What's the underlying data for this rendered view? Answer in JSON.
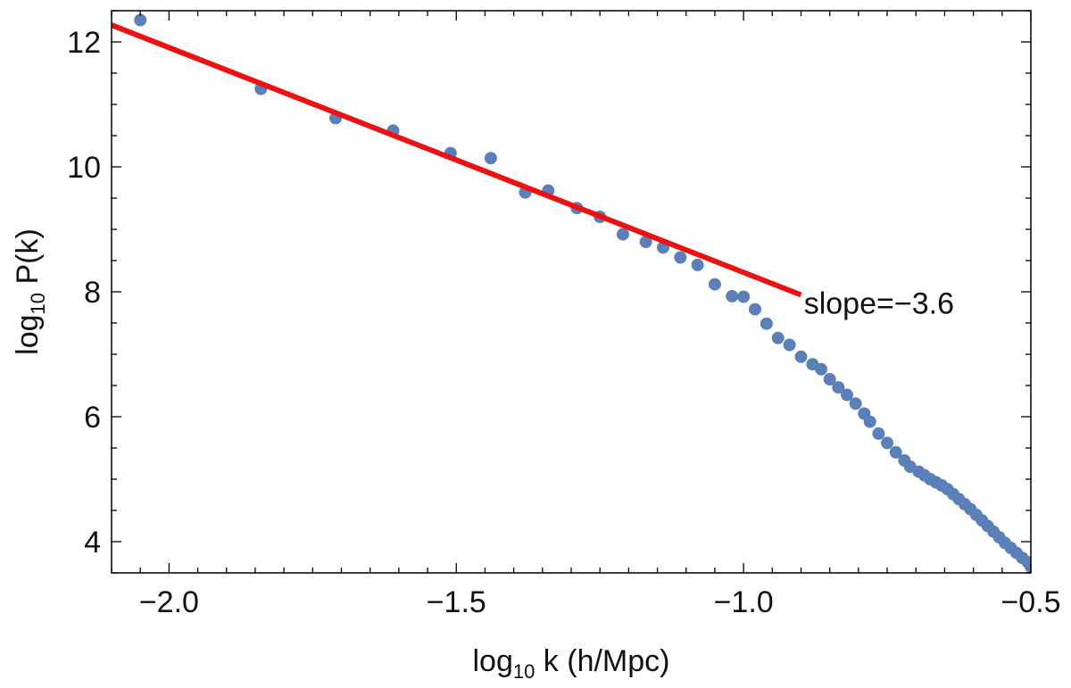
{
  "chart_data": {
    "type": "scatter",
    "xlabel": {
      "base": "log",
      "sub": "10",
      "rest": " k (h/Mpc)"
    },
    "ylabel": {
      "base": "log",
      "sub": "10",
      "rest": " P(k)"
    },
    "xlim": [
      -2.1,
      -0.5
    ],
    "ylim": [
      3.5,
      12.5
    ],
    "xticks": [
      -2.0,
      -1.5,
      -1.0,
      -0.5
    ],
    "xtick_labels": [
      "−2.0",
      "−1.5",
      "−1.0",
      "−0.5"
    ],
    "yticks": [
      4,
      6,
      8,
      10,
      12
    ],
    "ytick_labels": [
      "4",
      "6",
      "8",
      "10",
      "12"
    ],
    "grid": false,
    "colors": {
      "points": "#5b7fb8",
      "fit": "#ee1111",
      "axes": "#000000"
    },
    "series": [
      {
        "kind": "points",
        "points": [
          [
            -2.05,
            12.35
          ],
          [
            -1.84,
            11.25
          ],
          [
            -1.71,
            10.78
          ],
          [
            -1.61,
            10.58
          ],
          [
            -1.51,
            10.22
          ],
          [
            -1.44,
            10.14
          ],
          [
            -1.38,
            9.59
          ],
          [
            -1.34,
            9.62
          ],
          [
            -1.29,
            9.34
          ],
          [
            -1.25,
            9.2
          ],
          [
            -1.21,
            8.92
          ],
          [
            -1.17,
            8.8
          ],
          [
            -1.14,
            8.71
          ],
          [
            -1.11,
            8.55
          ],
          [
            -1.08,
            8.43
          ],
          [
            -1.05,
            8.12
          ],
          [
            -1.02,
            7.93
          ],
          [
            -1.0,
            7.92
          ],
          [
            -0.98,
            7.72
          ],
          [
            -0.96,
            7.49
          ],
          [
            -0.94,
            7.26
          ],
          [
            -0.92,
            7.15
          ],
          [
            -0.9,
            6.96
          ],
          [
            -0.88,
            6.84
          ],
          [
            -0.865,
            6.76
          ],
          [
            -0.85,
            6.6
          ],
          [
            -0.835,
            6.47
          ],
          [
            -0.82,
            6.35
          ],
          [
            -0.805,
            6.21
          ],
          [
            -0.79,
            6.05
          ],
          [
            -0.78,
            5.92
          ],
          [
            -0.765,
            5.73
          ],
          [
            -0.75,
            5.58
          ],
          [
            -0.735,
            5.43
          ],
          [
            -0.72,
            5.3
          ],
          [
            -0.71,
            5.2
          ],
          [
            -0.695,
            5.12
          ],
          [
            -0.685,
            5.06
          ],
          [
            -0.675,
            5.0
          ],
          [
            -0.665,
            4.95
          ],
          [
            -0.655,
            4.9
          ],
          [
            -0.645,
            4.84
          ],
          [
            -0.635,
            4.76
          ],
          [
            -0.625,
            4.68
          ],
          [
            -0.615,
            4.6
          ],
          [
            -0.605,
            4.52
          ],
          [
            -0.595,
            4.43
          ],
          [
            -0.585,
            4.34
          ],
          [
            -0.575,
            4.25
          ],
          [
            -0.565,
            4.16
          ],
          [
            -0.555,
            4.07
          ],
          [
            -0.545,
            3.98
          ],
          [
            -0.535,
            3.9
          ],
          [
            -0.525,
            3.82
          ],
          [
            -0.515,
            3.74
          ],
          [
            -0.505,
            3.67
          ],
          [
            -0.5,
            3.6
          ]
        ]
      },
      {
        "kind": "line",
        "points": [
          [
            -2.1,
            12.27
          ],
          [
            -0.9,
            7.95
          ]
        ]
      }
    ],
    "annotations": [
      {
        "text": "slope=−3.6",
        "x": -0.895,
        "y": 7.82
      }
    ]
  }
}
